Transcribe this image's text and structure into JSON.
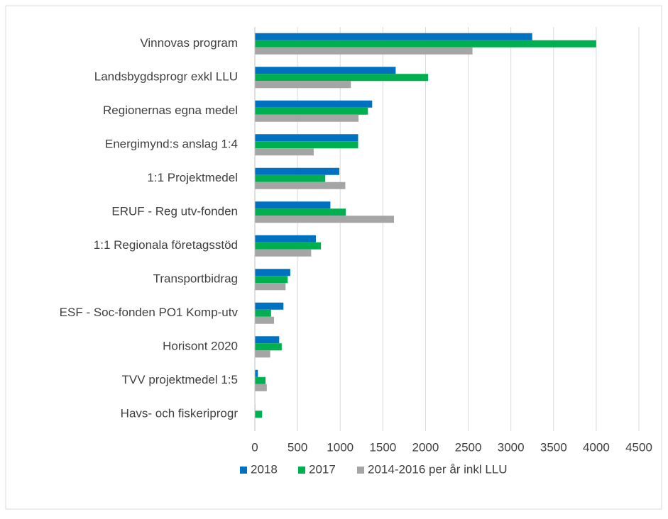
{
  "chart_data": {
    "type": "bar",
    "orientation": "horizontal",
    "categories": [
      "Vinnovas program",
      "Landsbygdsprogr exkl LLU",
      "Regionernas egna medel",
      "Energimynd:s anslag 1:4",
      "1:1 Projektmedel",
      "ERUF - Reg utv-fonden",
      "1:1 Regionala företagsstöd",
      "Transportbidrag",
      "ESF - Soc-fonden PO1 Komp-utv",
      "Horisont 2020",
      "TVV projektmedel 1:5",
      "Havs- och fiskeriprogr"
    ],
    "series": [
      {
        "name": "2018",
        "color": "#0070c0",
        "values": [
          3250,
          1650,
          1375,
          1210,
          990,
          885,
          715,
          415,
          335,
          285,
          35,
          5
        ]
      },
      {
        "name": "2017",
        "color": "#00b050",
        "values": [
          4000,
          2030,
          1325,
          1210,
          825,
          1065,
          775,
          385,
          190,
          315,
          125,
          85
        ]
      },
      {
        "name": "2014-2016 per år inkl LLU",
        "color": "#a5a5a5",
        "values": [
          2550,
          1125,
          1215,
          690,
          1060,
          1630,
          660,
          360,
          225,
          180,
          140,
          0
        ]
      }
    ],
    "xlim": [
      0,
      4500
    ],
    "xticks": [
      0,
      500,
      1000,
      1500,
      2000,
      2500,
      3000,
      3500,
      4000,
      4500
    ],
    "grid": true,
    "legend": "bottom"
  }
}
